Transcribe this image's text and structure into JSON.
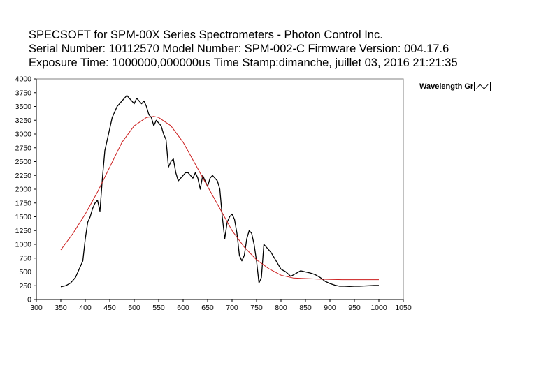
{
  "header": {
    "line1": "SPECSOFT for SPM-00X Series Spectrometers - Photon Control Inc.",
    "line2": "Serial Number: 10112570     Model Number: SPM-002-C   Firmware Version: 004.17.6",
    "line3": "Exposure Time: 1000000,000000us  Time Stamp:dimanche, juillet 03, 2016 21:21:35"
  },
  "legend": {
    "label": "Wavelength Gr"
  },
  "colors": {
    "measured": "#000000",
    "fit": "#cc1f1f",
    "axis": "#000000"
  },
  "chart_data": {
    "type": "line",
    "xlim": [
      300,
      1050
    ],
    "ylim": [
      0,
      4000
    ],
    "x_ticks": [
      300,
      350,
      400,
      450,
      500,
      550,
      600,
      650,
      700,
      750,
      800,
      850,
      900,
      950,
      1000,
      1050
    ],
    "y_ticks": [
      0,
      250,
      500,
      750,
      1000,
      1250,
      1500,
      1750,
      2000,
      2250,
      2500,
      2750,
      3000,
      3250,
      3500,
      3750,
      4000
    ],
    "grid": false,
    "legend_position": "top-right",
    "series": [
      {
        "color": "#000000",
        "x": [
          350,
          360,
          370,
          380,
          390,
          395,
          400,
          405,
          410,
          415,
          420,
          425,
          430,
          435,
          440,
          445,
          450,
          455,
          460,
          465,
          470,
          475,
          480,
          485,
          490,
          495,
          500,
          505,
          510,
          515,
          520,
          525,
          530,
          535,
          540,
          545,
          550,
          555,
          560,
          565,
          570,
          575,
          580,
          585,
          590,
          595,
          600,
          605,
          610,
          615,
          620,
          625,
          630,
          635,
          640,
          645,
          650,
          655,
          660,
          665,
          670,
          675,
          680,
          685,
          690,
          695,
          700,
          705,
          710,
          715,
          720,
          725,
          730,
          735,
          740,
          745,
          750,
          755,
          760,
          765,
          770,
          775,
          780,
          790,
          800,
          810,
          820,
          830,
          840,
          850,
          860,
          870,
          880,
          890,
          900,
          910,
          920,
          930,
          940,
          950,
          960,
          970,
          980,
          990,
          1000
        ],
        "y": [
          230,
          250,
          300,
          400,
          600,
          700,
          1100,
          1400,
          1500,
          1650,
          1750,
          1800,
          1600,
          2200,
          2700,
          2900,
          3100,
          3300,
          3400,
          3500,
          3550,
          3600,
          3650,
          3700,
          3650,
          3600,
          3550,
          3650,
          3600,
          3550,
          3600,
          3500,
          3350,
          3300,
          3150,
          3250,
          3200,
          3150,
          3000,
          2900,
          2400,
          2500,
          2550,
          2300,
          2150,
          2200,
          2250,
          2300,
          2300,
          2250,
          2200,
          2300,
          2200,
          2000,
          2250,
          2150,
          2050,
          2200,
          2250,
          2200,
          2150,
          2000,
          1500,
          1100,
          1400,
          1500,
          1550,
          1450,
          1200,
          800,
          700,
          800,
          1100,
          1250,
          1200,
          1000,
          700,
          300,
          400,
          1000,
          950,
          900,
          850,
          700,
          550,
          500,
          420,
          470,
          520,
          500,
          480,
          450,
          400,
          330,
          290,
          260,
          240,
          240,
          235,
          240,
          240,
          245,
          250,
          255,
          255
        ]
      },
      {
        "color": "#cc1f1f",
        "x": [
          350,
          375,
          400,
          425,
          450,
          475,
          500,
          525,
          540,
          550,
          575,
          600,
          625,
          650,
          675,
          700,
          725,
          750,
          775,
          800,
          825,
          850,
          875,
          900,
          925,
          950,
          975,
          1000
        ],
        "y": [
          900,
          1200,
          1550,
          1950,
          2400,
          2850,
          3150,
          3300,
          3320,
          3300,
          3150,
          2850,
          2450,
          2050,
          1650,
          1250,
          950,
          720,
          560,
          440,
          390,
          380,
          370,
          365,
          360,
          360,
          360,
          360
        ]
      }
    ]
  }
}
